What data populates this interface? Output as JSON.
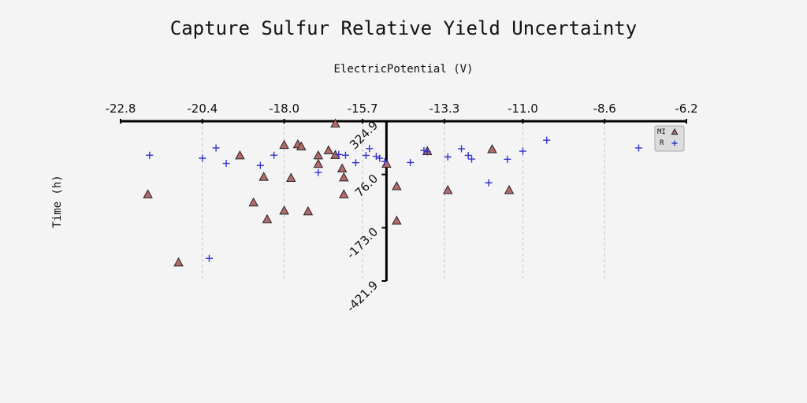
{
  "chart_data": {
    "type": "scatter",
    "title": "Capture Sulfur Relative Yield Uncertainty",
    "xlabel": "ElectricPotential (V)",
    "ylabel": "Time (h)",
    "xlim": [
      -22.8,
      -6.2
    ],
    "ylim": [
      -421.9,
      324.9
    ],
    "x_ticks": [
      -22.8,
      -20.4,
      -18.0,
      -15.7,
      -13.3,
      -11.0,
      -8.6,
      -6.2
    ],
    "x_tick_labels": [
      "-22.8",
      "-20.4",
      "-18.0",
      "-15.7",
      "-13.3",
      "-11.0",
      "-8.6",
      "-6.2"
    ],
    "y_ticks": [
      324.9,
      76.0,
      -173.0,
      -421.9
    ],
    "y_tick_labels": [
      "324.9",
      "76.0",
      "-173.0",
      "-421.9"
    ],
    "x_axis_position": "top",
    "y_axis_crosses_x_at": -15.0,
    "grid": {
      "vertical": true,
      "horizontal": false
    },
    "legend_position": "top-right",
    "series": [
      {
        "name": "MI",
        "marker": "triangle",
        "color": "#b46a6a",
        "edge_color": "#222222",
        "points": [
          [
            -16.5,
            312
          ],
          [
            -18.0,
            212
          ],
          [
            -17.6,
            215
          ],
          [
            -17.5,
            205
          ],
          [
            -16.7,
            187
          ],
          [
            -19.3,
            163
          ],
          [
            -17.0,
            163
          ],
          [
            -16.5,
            165
          ],
          [
            -17.0,
            123
          ],
          [
            -16.3,
            102
          ],
          [
            -16.25,
            60
          ],
          [
            -18.6,
            63
          ],
          [
            -17.8,
            58
          ],
          [
            -15.0,
            124
          ],
          [
            -14.7,
            19
          ],
          [
            -16.25,
            -19
          ],
          [
            -22.0,
            -19
          ],
          [
            -18.9,
            -57
          ],
          [
            -18.0,
            -95
          ],
          [
            -17.3,
            -98
          ],
          [
            -18.5,
            -135
          ],
          [
            -14.7,
            -142
          ],
          [
            -21.1,
            -337
          ],
          [
            -13.8,
            183
          ],
          [
            -13.2,
            1
          ],
          [
            -11.9,
            192
          ],
          [
            -11.4,
            1
          ]
        ]
      },
      {
        "name": "R",
        "marker": "plus",
        "color": "#3333cc",
        "points": [
          [
            -21.95,
            166
          ],
          [
            -20.4,
            152
          ],
          [
            -20.0,
            200
          ],
          [
            -19.7,
            128
          ],
          [
            -18.7,
            118
          ],
          [
            -18.3,
            166
          ],
          [
            -16.4,
            169
          ],
          [
            -16.2,
            166
          ],
          [
            -17.0,
            85
          ],
          [
            -15.9,
            131
          ],
          [
            -15.5,
            197
          ],
          [
            -15.6,
            165
          ],
          [
            -15.3,
            161
          ],
          [
            -15.2,
            152
          ],
          [
            -15.05,
            136
          ],
          [
            -14.3,
            132
          ],
          [
            -13.9,
            188
          ],
          [
            -13.8,
            182
          ],
          [
            -13.2,
            158
          ],
          [
            -12.8,
            196
          ],
          [
            -12.6,
            165
          ],
          [
            -12.5,
            148
          ],
          [
            -12.0,
            37
          ],
          [
            -11.45,
            147
          ],
          [
            -11.0,
            185
          ],
          [
            -10.3,
            236
          ],
          [
            -7.6,
            200
          ],
          [
            -20.2,
            -316
          ]
        ]
      }
    ]
  }
}
